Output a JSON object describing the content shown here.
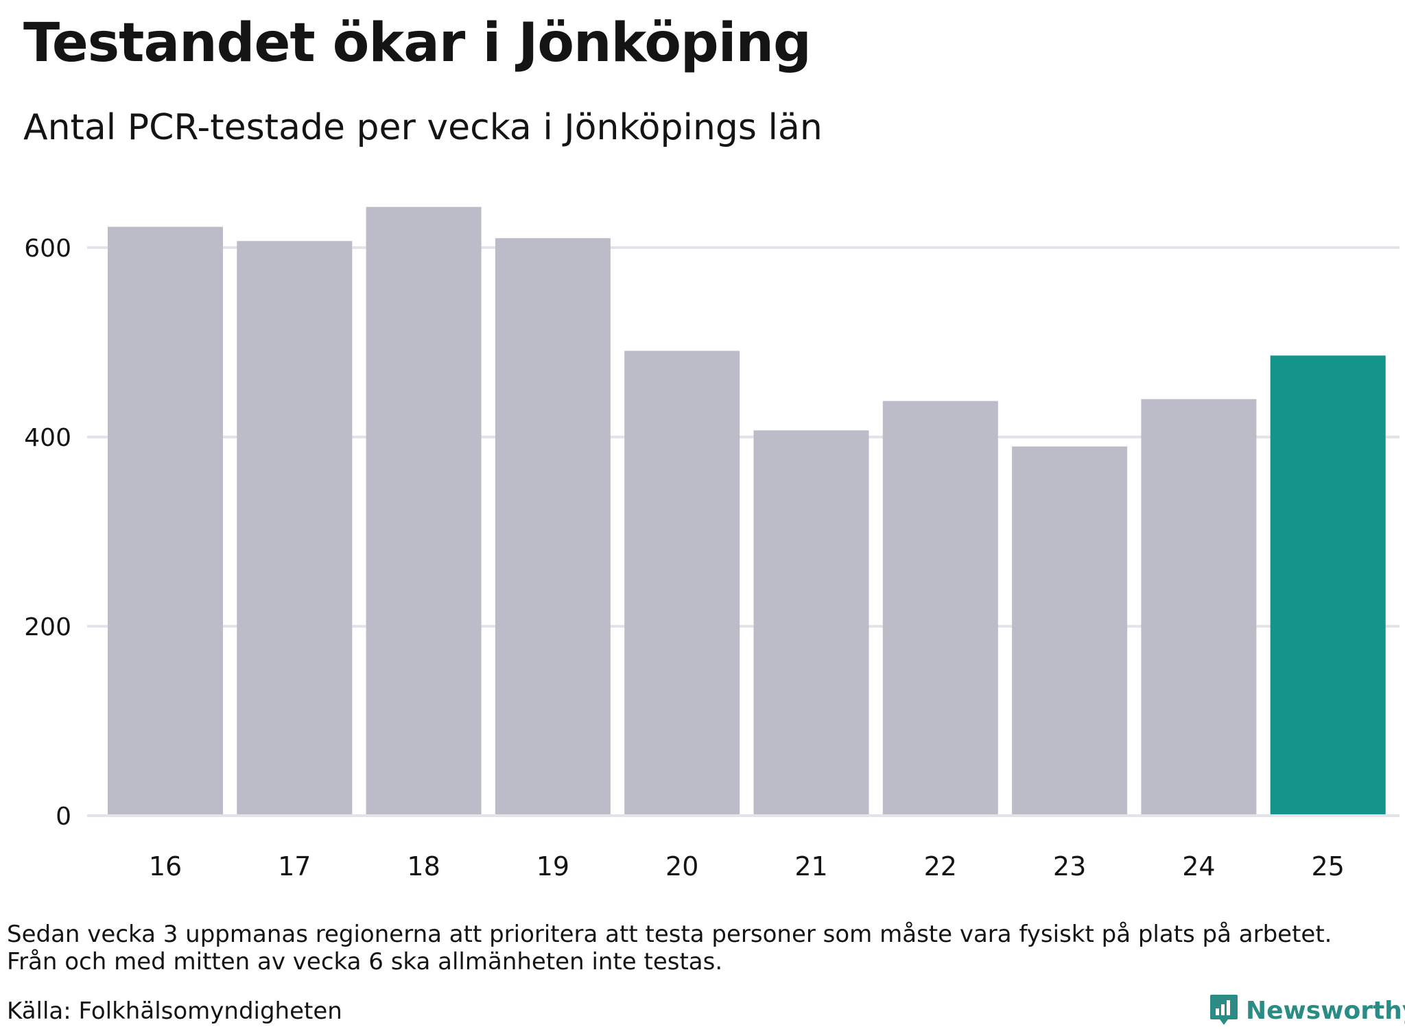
{
  "title": "Testandet ökar i Jönköping",
  "subtitle": "Antal PCR-testade per vecka i Jönköpings län",
  "footnote_lines": [
    "Sedan vecka 3 uppmanas regionerna att prioritera att testa personer som måste vara fysiskt på plats på arbetet.",
    "Från och med mitten av vecka 6 ska allmänheten inte testas."
  ],
  "source": "Källa: Folkhälsomyndigheten",
  "brand": {
    "name": "Newsworthy",
    "icon": "newsworthy-logo-icon",
    "color": "#2a8c84"
  },
  "colors": {
    "bar": "#bcbbc8",
    "highlight": "#14948a",
    "grid": "#e4e3ea",
    "text": "#141414"
  },
  "chart_data": {
    "type": "bar",
    "categories": [
      "16",
      "17",
      "18",
      "19",
      "20",
      "21",
      "22",
      "23",
      "24",
      "25"
    ],
    "values": [
      622,
      607,
      643,
      610,
      491,
      407,
      438,
      390,
      440,
      486
    ],
    "highlight_index": 9,
    "title": "Testandet ökar i Jönköping",
    "subtitle": "Antal PCR-testade per vecka i Jönköpings län",
    "xlabel": "",
    "ylabel": "",
    "ylim": [
      0,
      650
    ],
    "yticks": [
      0,
      200,
      400,
      600
    ],
    "grid": true,
    "legend": "none"
  }
}
